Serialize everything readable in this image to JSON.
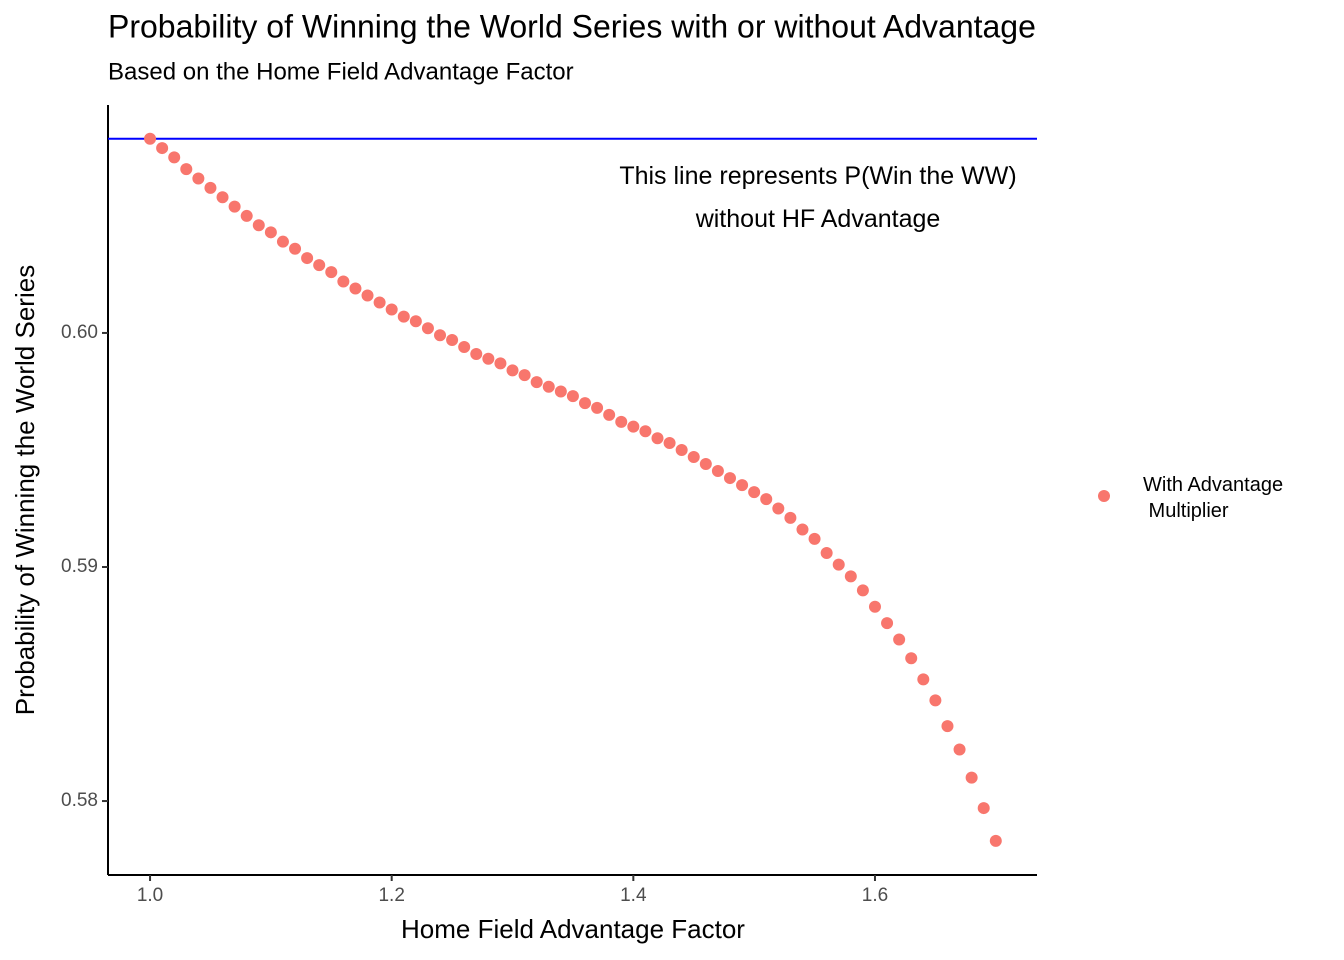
{
  "chart_data": {
    "type": "scatter",
    "title": "Probability of Winning the World Series with or without Advantage",
    "subtitle": "Based on the Home Field Advantage Factor",
    "x_label": "Home Field Advantage Factor",
    "y_label": "Probability of Winning the World Series",
    "hline": {
      "value": 0.6083,
      "color": "#0000ff"
    },
    "annotation": "This line represents P(Win the WW)\nwithout HF Advantage",
    "xlim": [
      0.9652,
      1.7341
    ],
    "ylim": [
      0.57684,
      0.60974
    ],
    "xticks": [
      {
        "value": 1.0,
        "label": "1.0"
      },
      1.2,
      1.4,
      1.6
    ],
    "yticks": [
      {
        "value": 0.58,
        "label": "0.58"
      },
      {
        "value": 0.59,
        "label": "0.59"
      },
      {
        "value": 0.6,
        "label": "0.60"
      }
    ],
    "grid": false,
    "legend": "right",
    "series": [
      {
        "name": "With Advantage\n Multiplier",
        "color": "#f8766d",
        "x": [
          1.0,
          1.01,
          1.02,
          1.03,
          1.04,
          1.05,
          1.06,
          1.07,
          1.08,
          1.09,
          1.1,
          1.11,
          1.12,
          1.13,
          1.14,
          1.15,
          1.16,
          1.17,
          1.18,
          1.19,
          1.2,
          1.21,
          1.22,
          1.23,
          1.24,
          1.25,
          1.26,
          1.27,
          1.28,
          1.29,
          1.3,
          1.31,
          1.32,
          1.33,
          1.34,
          1.35,
          1.36,
          1.37,
          1.38,
          1.39,
          1.4,
          1.41,
          1.42,
          1.43,
          1.44,
          1.45,
          1.46,
          1.47,
          1.48,
          1.49,
          1.5,
          1.51,
          1.52,
          1.53,
          1.54,
          1.55,
          1.56,
          1.57,
          1.58,
          1.59,
          1.6,
          1.61,
          1.62,
          1.63,
          1.64,
          1.65,
          1.66,
          1.67,
          1.68,
          1.69,
          1.7
        ],
        "values": [
          0.6083,
          0.6079,
          0.6075,
          0.607,
          0.6066,
          0.6062,
          0.6058,
          0.6054,
          0.605,
          0.6046,
          0.6043,
          0.6039,
          0.6036,
          0.6032,
          0.6029,
          0.6026,
          0.6022,
          0.6019,
          0.6016,
          0.6013,
          0.601,
          0.6007,
          0.6005,
          0.6002,
          0.5999,
          0.5997,
          0.5994,
          0.5991,
          0.5989,
          0.5987,
          0.5984,
          0.5982,
          0.5979,
          0.5977,
          0.5975,
          0.5973,
          0.597,
          0.5968,
          0.5965,
          0.5962,
          0.596,
          0.5958,
          0.5955,
          0.5953,
          0.595,
          0.5947,
          0.5944,
          0.5941,
          0.5938,
          0.5935,
          0.5932,
          0.5929,
          0.5925,
          0.5921,
          0.5916,
          0.5912,
          0.5906,
          0.5901,
          0.5896,
          0.589,
          0.5883,
          0.5876,
          0.5869,
          0.5861,
          0.5852,
          0.5843,
          0.5832,
          0.5822,
          0.581,
          0.5797,
          0.5783
        ]
      }
    ]
  }
}
